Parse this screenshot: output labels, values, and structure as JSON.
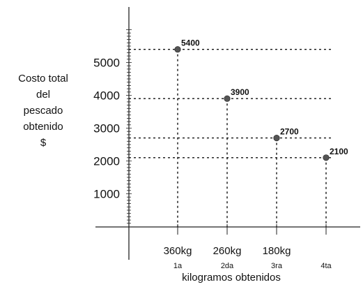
{
  "chart_data": {
    "type": "scatter",
    "ylabel_lines": [
      "Costo total",
      "del",
      "pescado",
      "obtenido",
      "$"
    ],
    "xlabel": "kilogramos obtenidos",
    "y_ticks": [
      1000,
      2000,
      3000,
      4000,
      5000
    ],
    "ylim": [
      0,
      6000
    ],
    "categories": [
      "360kg",
      "260kg",
      "180kg",
      ""
    ],
    "ordinals": [
      "1a",
      "2da",
      "3ra",
      "4ta"
    ],
    "values": [
      5400,
      3900,
      2700,
      2100
    ],
    "point_labels": [
      "5400",
      "3900",
      "2700",
      "2100"
    ],
    "grid": "dotted guides to each point",
    "point_color": "#555555"
  }
}
